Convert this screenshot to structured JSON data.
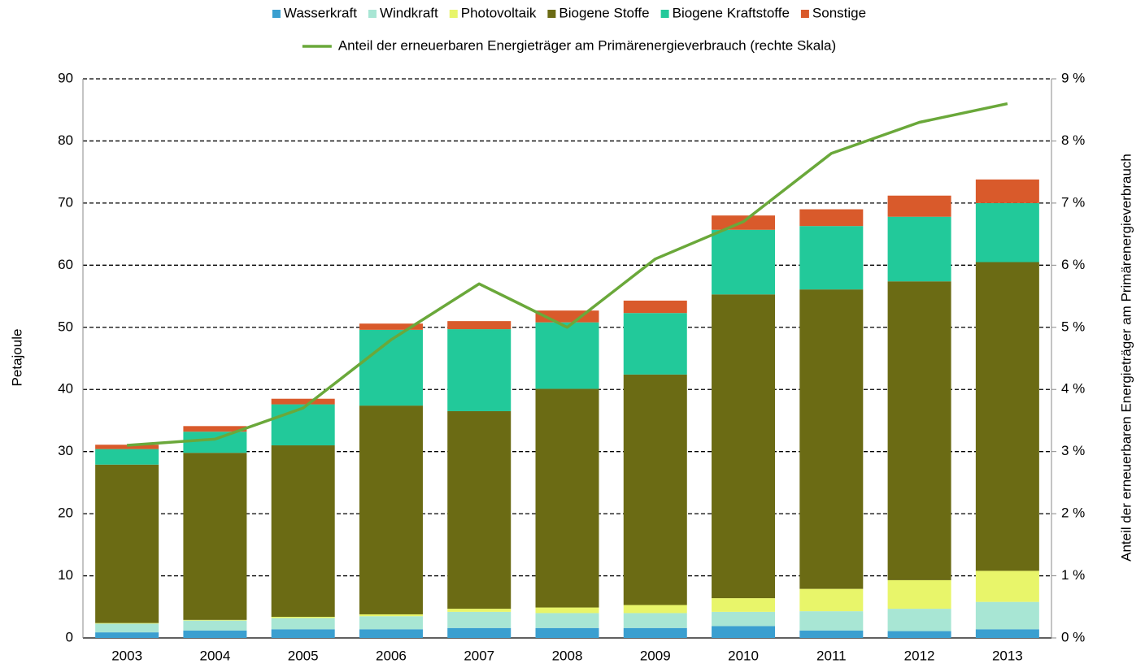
{
  "chart_data": {
    "type": "bar",
    "stacked": true,
    "y_label": "Petajoule",
    "y2_label": "Anteil der erneuerbaren Energieträger am Primärenergieverbrauch",
    "categories": [
      "2003",
      "2004",
      "2005",
      "2006",
      "2007",
      "2008",
      "2009",
      "2010",
      "2011",
      "2012",
      "2013"
    ],
    "series": [
      {
        "name": "Wasserkraft",
        "color": "#3a9fd0",
        "values": [
          0.9,
          1.2,
          1.4,
          1.4,
          1.6,
          1.6,
          1.6,
          1.9,
          1.2,
          1.1,
          1.4
        ]
      },
      {
        "name": "Windkraft",
        "color": "#a8e6d4",
        "values": [
          1.4,
          1.6,
          1.8,
          2.1,
          2.6,
          2.4,
          2.4,
          2.3,
          3.1,
          3.6,
          4.4
        ]
      },
      {
        "name": "Photovoltaik",
        "color": "#e8f56a",
        "values": [
          0.1,
          0.1,
          0.2,
          0.3,
          0.5,
          0.9,
          1.3,
          2.2,
          3.6,
          4.6,
          5.0
        ]
      },
      {
        "name": "Biogene Stoffe",
        "color": "#6b6b14",
        "values": [
          25.5,
          26.9,
          27.6,
          33.6,
          31.8,
          35.2,
          37.1,
          48.9,
          48.2,
          48.1,
          49.7
        ]
      },
      {
        "name": "Biogene Kraftstoffe",
        "color": "#22c99a",
        "values": [
          2.5,
          3.4,
          6.6,
          12.2,
          13.2,
          10.7,
          9.9,
          10.4,
          10.2,
          10.4,
          9.5
        ]
      },
      {
        "name": "Sonstige",
        "color": "#d95a2b",
        "values": [
          0.7,
          0.9,
          0.9,
          1.0,
          1.3,
          1.9,
          2.0,
          2.3,
          2.7,
          3.4,
          3.8
        ]
      },
      {
        "name": "Anteil der erneuerbaren Energieträger am Primärenergieverbrauch (rechte Skala)",
        "type": "line",
        "axis": "y2",
        "color": "#6aa83a",
        "values": [
          3.1,
          3.2,
          3.7,
          4.8,
          5.7,
          5.0,
          6.1,
          6.7,
          7.8,
          8.3,
          8.6
        ]
      }
    ],
    "ylim": [
      0,
      90
    ],
    "yticks": [
      0,
      10,
      20,
      30,
      40,
      50,
      60,
      70,
      80,
      90
    ],
    "y2lim": [
      0,
      9
    ],
    "y2ticks": [
      {
        "value": 0,
        "label": "0 %"
      },
      {
        "value": 1,
        "label": "1 %"
      },
      {
        "value": 2,
        "label": "2 %"
      },
      {
        "value": 3,
        "label": "3 %"
      },
      {
        "value": 4,
        "label": "4 %"
      },
      {
        "value": 5,
        "label": "5 %"
      },
      {
        "value": 6,
        "label": "6 %"
      },
      {
        "value": 7,
        "label": "7 %"
      },
      {
        "value": 8,
        "label": "8 %"
      },
      {
        "value": 9,
        "label": "9 %"
      }
    ],
    "grid": true
  }
}
